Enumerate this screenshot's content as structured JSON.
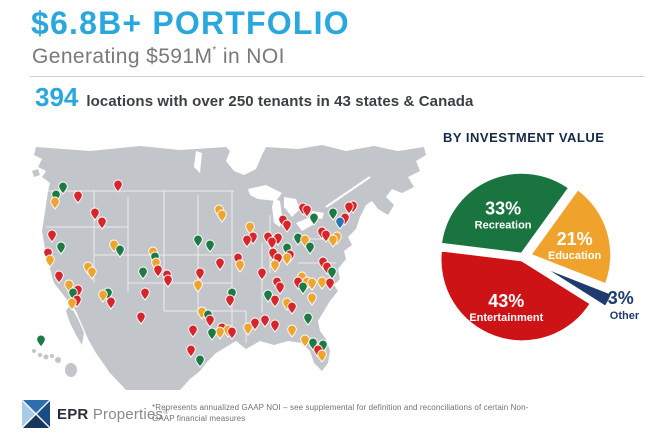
{
  "colors": {
    "accent_blue": "#2AA7DD",
    "text_dark": "#3A4045",
    "text_gray": "#77797C",
    "navy": "#152A47",
    "divider": "#CBCED1",
    "map_land": "#C2C5CA",
    "map_border": "#FFFFFF"
  },
  "header": {
    "title": "$6.8B+ PORTFOLIO",
    "subtitle_main": "Generating $591M",
    "subtitle_sup": "*",
    "subtitle_tail": " in NOI"
  },
  "stats": {
    "number": "394",
    "text": "locations with over 250 tenants in 43 states & Canada"
  },
  "map": {
    "land_color": "#C2C5CA",
    "border_color": "#FFFFFF",
    "pin_colors": {
      "r": "#D6252B",
      "g": "#1E7A45",
      "o": "#EFA42E",
      "b": "#2E74B5"
    },
    "pins": [
      [
        33,
        44,
        "g"
      ],
      [
        26,
        52,
        "g"
      ],
      [
        25,
        59,
        "o"
      ],
      [
        48,
        53,
        "r"
      ],
      [
        88,
        42,
        "r"
      ],
      [
        65,
        70,
        "r"
      ],
      [
        72,
        79,
        "r"
      ],
      [
        22,
        92,
        "r"
      ],
      [
        31,
        104,
        "g"
      ],
      [
        18,
        110,
        "r"
      ],
      [
        20,
        117,
        "o"
      ],
      [
        29,
        133,
        "r"
      ],
      [
        39,
        142,
        "o"
      ],
      [
        43,
        150,
        "g"
      ],
      [
        48,
        147,
        "r"
      ],
      [
        42,
        160,
        "o"
      ],
      [
        47,
        157,
        "r"
      ],
      [
        73,
        152,
        "o"
      ],
      [
        78,
        150,
        "g"
      ],
      [
        81,
        159,
        "r"
      ],
      [
        58,
        124,
        "o"
      ],
      [
        62,
        129,
        "o"
      ],
      [
        84,
        102,
        "o"
      ],
      [
        90,
        107,
        "g"
      ],
      [
        123,
        109,
        "o"
      ],
      [
        125,
        114,
        "g"
      ],
      [
        126,
        120,
        "o"
      ],
      [
        128,
        127,
        "r"
      ],
      [
        113,
        129,
        "g"
      ],
      [
        115,
        150,
        "r"
      ],
      [
        111,
        174,
        "r"
      ],
      [
        137,
        132,
        "r"
      ],
      [
        138,
        137,
        "r"
      ],
      [
        189,
        67,
        "o"
      ],
      [
        192,
        72,
        "o"
      ],
      [
        168,
        97,
        "g"
      ],
      [
        180,
        102,
        "g"
      ],
      [
        190,
        120,
        "r"
      ],
      [
        170,
        130,
        "r"
      ],
      [
        168,
        142,
        "o"
      ],
      [
        200,
        157,
        "r"
      ],
      [
        202,
        150,
        "g"
      ],
      [
        172,
        169,
        "o"
      ],
      [
        178,
        172,
        "g"
      ],
      [
        180,
        177,
        "r"
      ],
      [
        163,
        187,
        "r"
      ],
      [
        190,
        189,
        "o"
      ],
      [
        182,
        190,
        "g"
      ],
      [
        161,
        207,
        "r"
      ],
      [
        170,
        217,
        "g"
      ],
      [
        217,
        97,
        "r"
      ],
      [
        220,
        84,
        "o"
      ],
      [
        223,
        94,
        "r"
      ],
      [
        208,
        115,
        "r"
      ],
      [
        210,
        122,
        "o"
      ],
      [
        232,
        130,
        "r"
      ],
      [
        238,
        94,
        "r"
      ],
      [
        242,
        99,
        "r"
      ],
      [
        248,
        95,
        "r"
      ],
      [
        253,
        77,
        "r"
      ],
      [
        257,
        82,
        "r"
      ],
      [
        268,
        95,
        "g"
      ],
      [
        275,
        97,
        "o"
      ],
      [
        243,
        110,
        "r"
      ],
      [
        248,
        115,
        "r"
      ],
      [
        245,
        122,
        "o"
      ],
      [
        257,
        105,
        "g"
      ],
      [
        260,
        112,
        "r"
      ],
      [
        257,
        115,
        "o"
      ],
      [
        273,
        65,
        "r"
      ],
      [
        277,
        67,
        "r"
      ],
      [
        284,
        75,
        "g"
      ],
      [
        292,
        89,
        "r"
      ],
      [
        303,
        70,
        "g"
      ],
      [
        310,
        79,
        "b"
      ],
      [
        315,
        75,
        "r"
      ],
      [
        307,
        94,
        "o"
      ],
      [
        319,
        64,
        "r"
      ],
      [
        323,
        63,
        "r"
      ],
      [
        296,
        92,
        "r"
      ],
      [
        303,
        97,
        "o"
      ],
      [
        280,
        104,
        "g"
      ],
      [
        293,
        119,
        "r"
      ],
      [
        297,
        124,
        "r"
      ],
      [
        302,
        129,
        "g"
      ],
      [
        272,
        134,
        "o"
      ],
      [
        277,
        139,
        "o"
      ],
      [
        282,
        140,
        "o"
      ],
      [
        268,
        139,
        "r"
      ],
      [
        273,
        144,
        "g"
      ],
      [
        292,
        139,
        "o"
      ],
      [
        300,
        140,
        "r"
      ],
      [
        247,
        139,
        "r"
      ],
      [
        250,
        144,
        "r"
      ],
      [
        238,
        152,
        "g"
      ],
      [
        245,
        157,
        "r"
      ],
      [
        257,
        160,
        "o"
      ],
      [
        262,
        164,
        "r"
      ],
      [
        282,
        155,
        "o"
      ],
      [
        225,
        180,
        "r"
      ],
      [
        218,
        185,
        "o"
      ],
      [
        235,
        177,
        "r"
      ],
      [
        245,
        182,
        "r"
      ],
      [
        262,
        187,
        "o"
      ],
      [
        278,
        175,
        "g"
      ],
      [
        192,
        185,
        "r"
      ],
      [
        198,
        187,
        "o"
      ],
      [
        202,
        189,
        "r"
      ],
      [
        275,
        197,
        "o"
      ],
      [
        283,
        200,
        "g"
      ],
      [
        288,
        207,
        "r"
      ],
      [
        292,
        212,
        "o"
      ],
      [
        293,
        202,
        "g"
      ],
      [
        11,
        197,
        "g"
      ]
    ]
  },
  "chart_data": {
    "type": "pie",
    "title": "BY INVESTMENT VALUE",
    "units": "%",
    "start_angle_deg": -83,
    "legend_position": "in-slice labels",
    "slices": [
      {
        "label": "Recreation",
        "value": 33,
        "color": "#19743F",
        "explode": 3,
        "label_position": "inside"
      },
      {
        "label": "Education",
        "value": 21,
        "color": "#EFA32D",
        "explode": 7,
        "label_position": "inside"
      },
      {
        "label": "Other",
        "value": 3,
        "color": "#1E3B6D",
        "explode": 15,
        "label_position": "outside",
        "label_color": "#1E3B6D"
      },
      {
        "label": "Entertainment",
        "value": 43,
        "color": "#CE1317",
        "explode": 3,
        "label_position": "inside"
      }
    ]
  },
  "footer": {
    "logo_bold": "EPR",
    "logo_light": " Properties",
    "logo_reg": "®",
    "footnote": {
      "lines": [
        "*Represents annualized GAAP NOI – see supplemental for definition and reconciliations of certain Non-",
        "GAAP financial measures"
      ]
    }
  }
}
